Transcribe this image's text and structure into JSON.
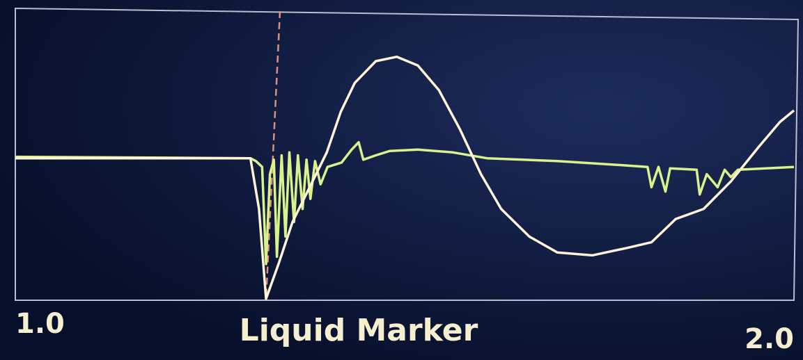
{
  "chart_data": {
    "type": "line",
    "x_label": "Liquid Marker",
    "xlim": [
      1.0,
      2.0
    ],
    "xticks": [
      {
        "value": 1,
        "label": "1.0"
      },
      {
        "value": 2,
        "label": "2.0"
      }
    ],
    "ylim": [
      -1,
      1
    ],
    "series": [
      {
        "color": "#fff3d6",
        "x": [
          1.0,
          1.302,
          1.313,
          1.322,
          1.338,
          1.356,
          1.378,
          1.4,
          1.418,
          1.436,
          1.463,
          1.49,
          1.517,
          1.544,
          1.571,
          1.598,
          1.624,
          1.66,
          1.696,
          1.741,
          1.785,
          1.817,
          1.848,
          1.884,
          1.919,
          1.955,
          1.982,
          2.0
        ],
        "values": [
          -0.02,
          -0.02,
          -0.37,
          -0.99,
          -0.75,
          -0.46,
          -0.22,
          0.02,
          0.3,
          0.5,
          0.65,
          0.68,
          0.62,
          0.45,
          0.18,
          -0.13,
          -0.37,
          -0.56,
          -0.67,
          -0.69,
          -0.64,
          -0.6,
          -0.44,
          -0.37,
          -0.18,
          0.06,
          0.23,
          0.31
        ]
      },
      {
        "color": "#d9f28c",
        "x": [
          1.0,
          1.302,
          1.309,
          1.317,
          1.322,
          1.327,
          1.332,
          1.336,
          1.342,
          1.347,
          1.352,
          1.358,
          1.363,
          1.369,
          1.374,
          1.379,
          1.385,
          1.392,
          1.401,
          1.419,
          1.432,
          1.441,
          1.447,
          1.463,
          1.481,
          1.517,
          1.562,
          1.606,
          1.696,
          1.785,
          1.812,
          1.817,
          1.826,
          1.835,
          1.841,
          1.875,
          1.879,
          1.888,
          1.902,
          1.911,
          1.919,
          1.928,
          2.0
        ],
        "values": [
          -0.01,
          -0.02,
          -0.04,
          -0.08,
          -0.75,
          -0.13,
          -0.03,
          -0.7,
          0.0,
          -0.56,
          0.02,
          -0.46,
          0.0,
          -0.37,
          -0.03,
          -0.3,
          -0.04,
          -0.2,
          -0.08,
          -0.05,
          0.04,
          0.09,
          -0.03,
          0.0,
          0.03,
          0.04,
          0.02,
          -0.02,
          -0.04,
          -0.07,
          -0.08,
          -0.22,
          -0.08,
          -0.25,
          -0.09,
          -0.1,
          -0.27,
          -0.13,
          -0.22,
          -0.1,
          -0.15,
          -0.1,
          -0.08
        ]
      }
    ]
  }
}
